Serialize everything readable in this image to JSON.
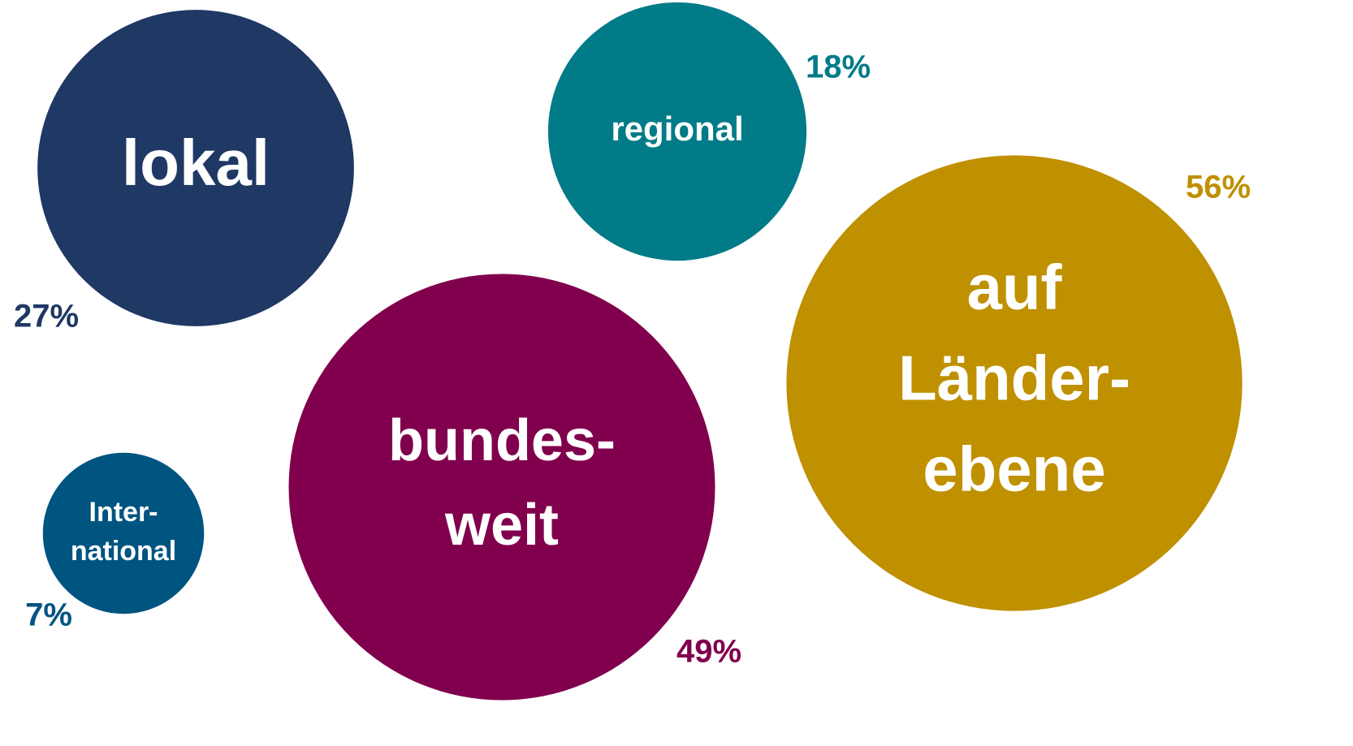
{
  "chart_data": {
    "type": "bubble",
    "categories": [
      [
        "lokal"
      ],
      [
        "regional"
      ],
      [
        "auf",
        "Länder-",
        "ebene"
      ],
      [
        "bundes-",
        "weit"
      ],
      [
        "Inter-",
        "national"
      ]
    ],
    "values": [
      27,
      18,
      56,
      49,
      7
    ],
    "value_labels": [
      "27%",
      "18%",
      "56%",
      "49%",
      "7%"
    ],
    "colors": [
      "#1f3864",
      "#007b87",
      "#bf9000",
      "#80004d",
      "#005480"
    ]
  }
}
